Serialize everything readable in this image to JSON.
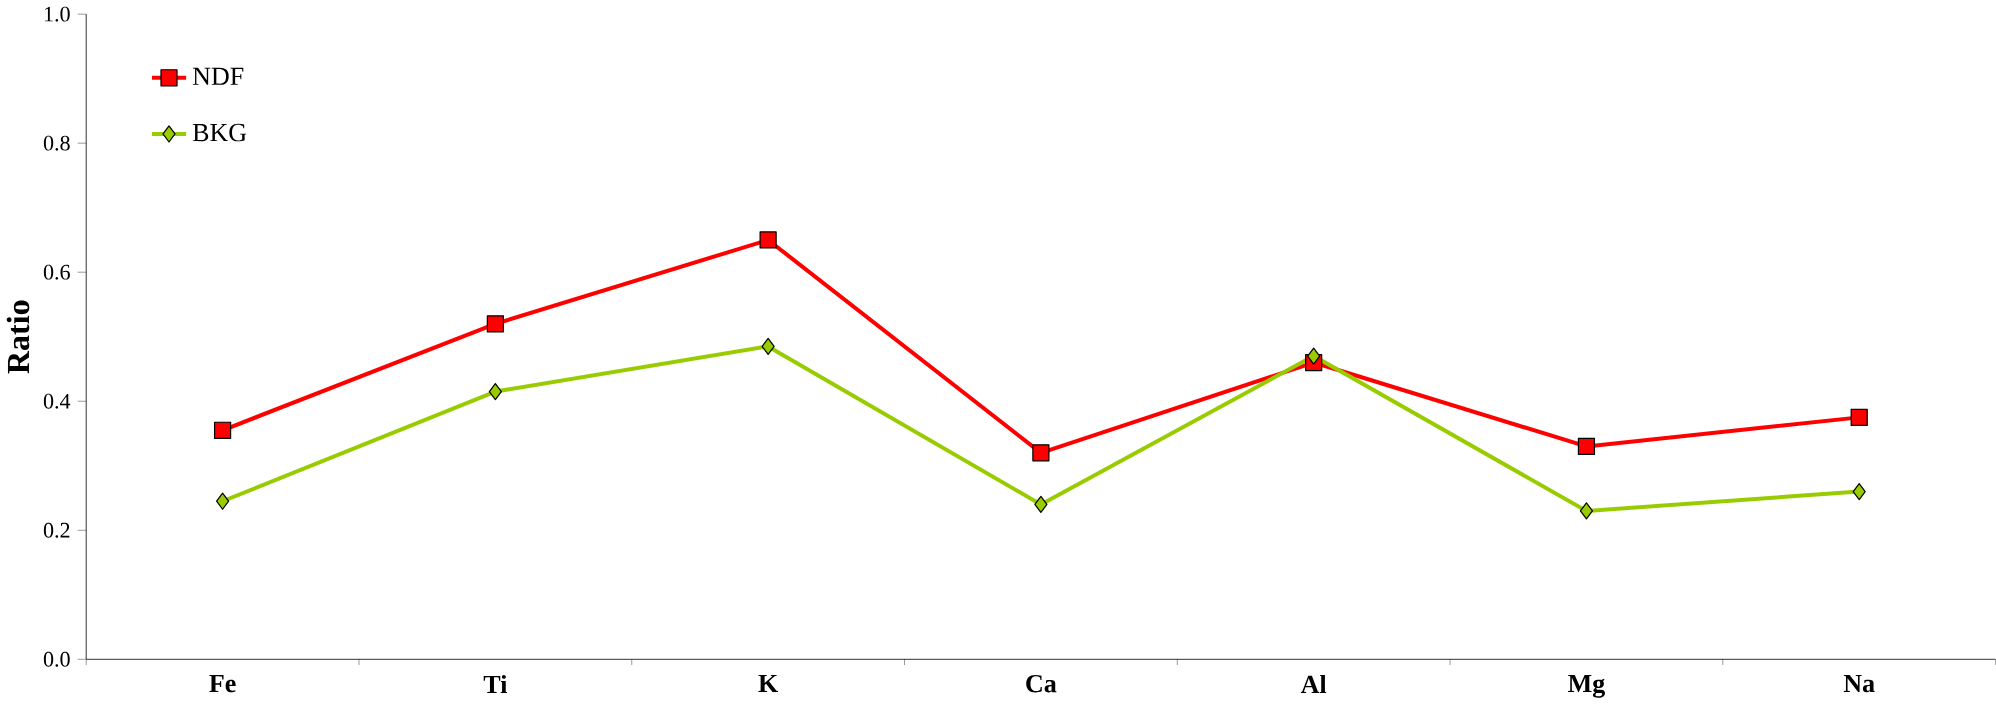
{
  "chart_data": {
    "type": "line",
    "ylabel": "Ratio",
    "categories": [
      "Fe",
      "Ti",
      "K",
      "Ca",
      "Al",
      "Mg",
      "Na"
    ],
    "series": [
      {
        "name": "NDF",
        "color": "#ff0000",
        "marker": "square",
        "values": [
          0.355,
          0.52,
          0.65,
          0.32,
          0.46,
          0.33,
          0.375
        ]
      },
      {
        "name": "BKG",
        "color": "#99cc00",
        "marker": "diamond",
        "values": [
          0.245,
          0.415,
          0.485,
          0.24,
          0.47,
          0.23,
          0.26
        ]
      }
    ],
    "ylim": [
      0,
      1
    ],
    "yticks": [
      {
        "value": 0,
        "label": "0.0"
      },
      0.2,
      0.4,
      0.6,
      0.8,
      {
        "value": 1,
        "label": "1.0"
      }
    ],
    "legend": "top left",
    "grid": false,
    "line_style": "solid"
  }
}
